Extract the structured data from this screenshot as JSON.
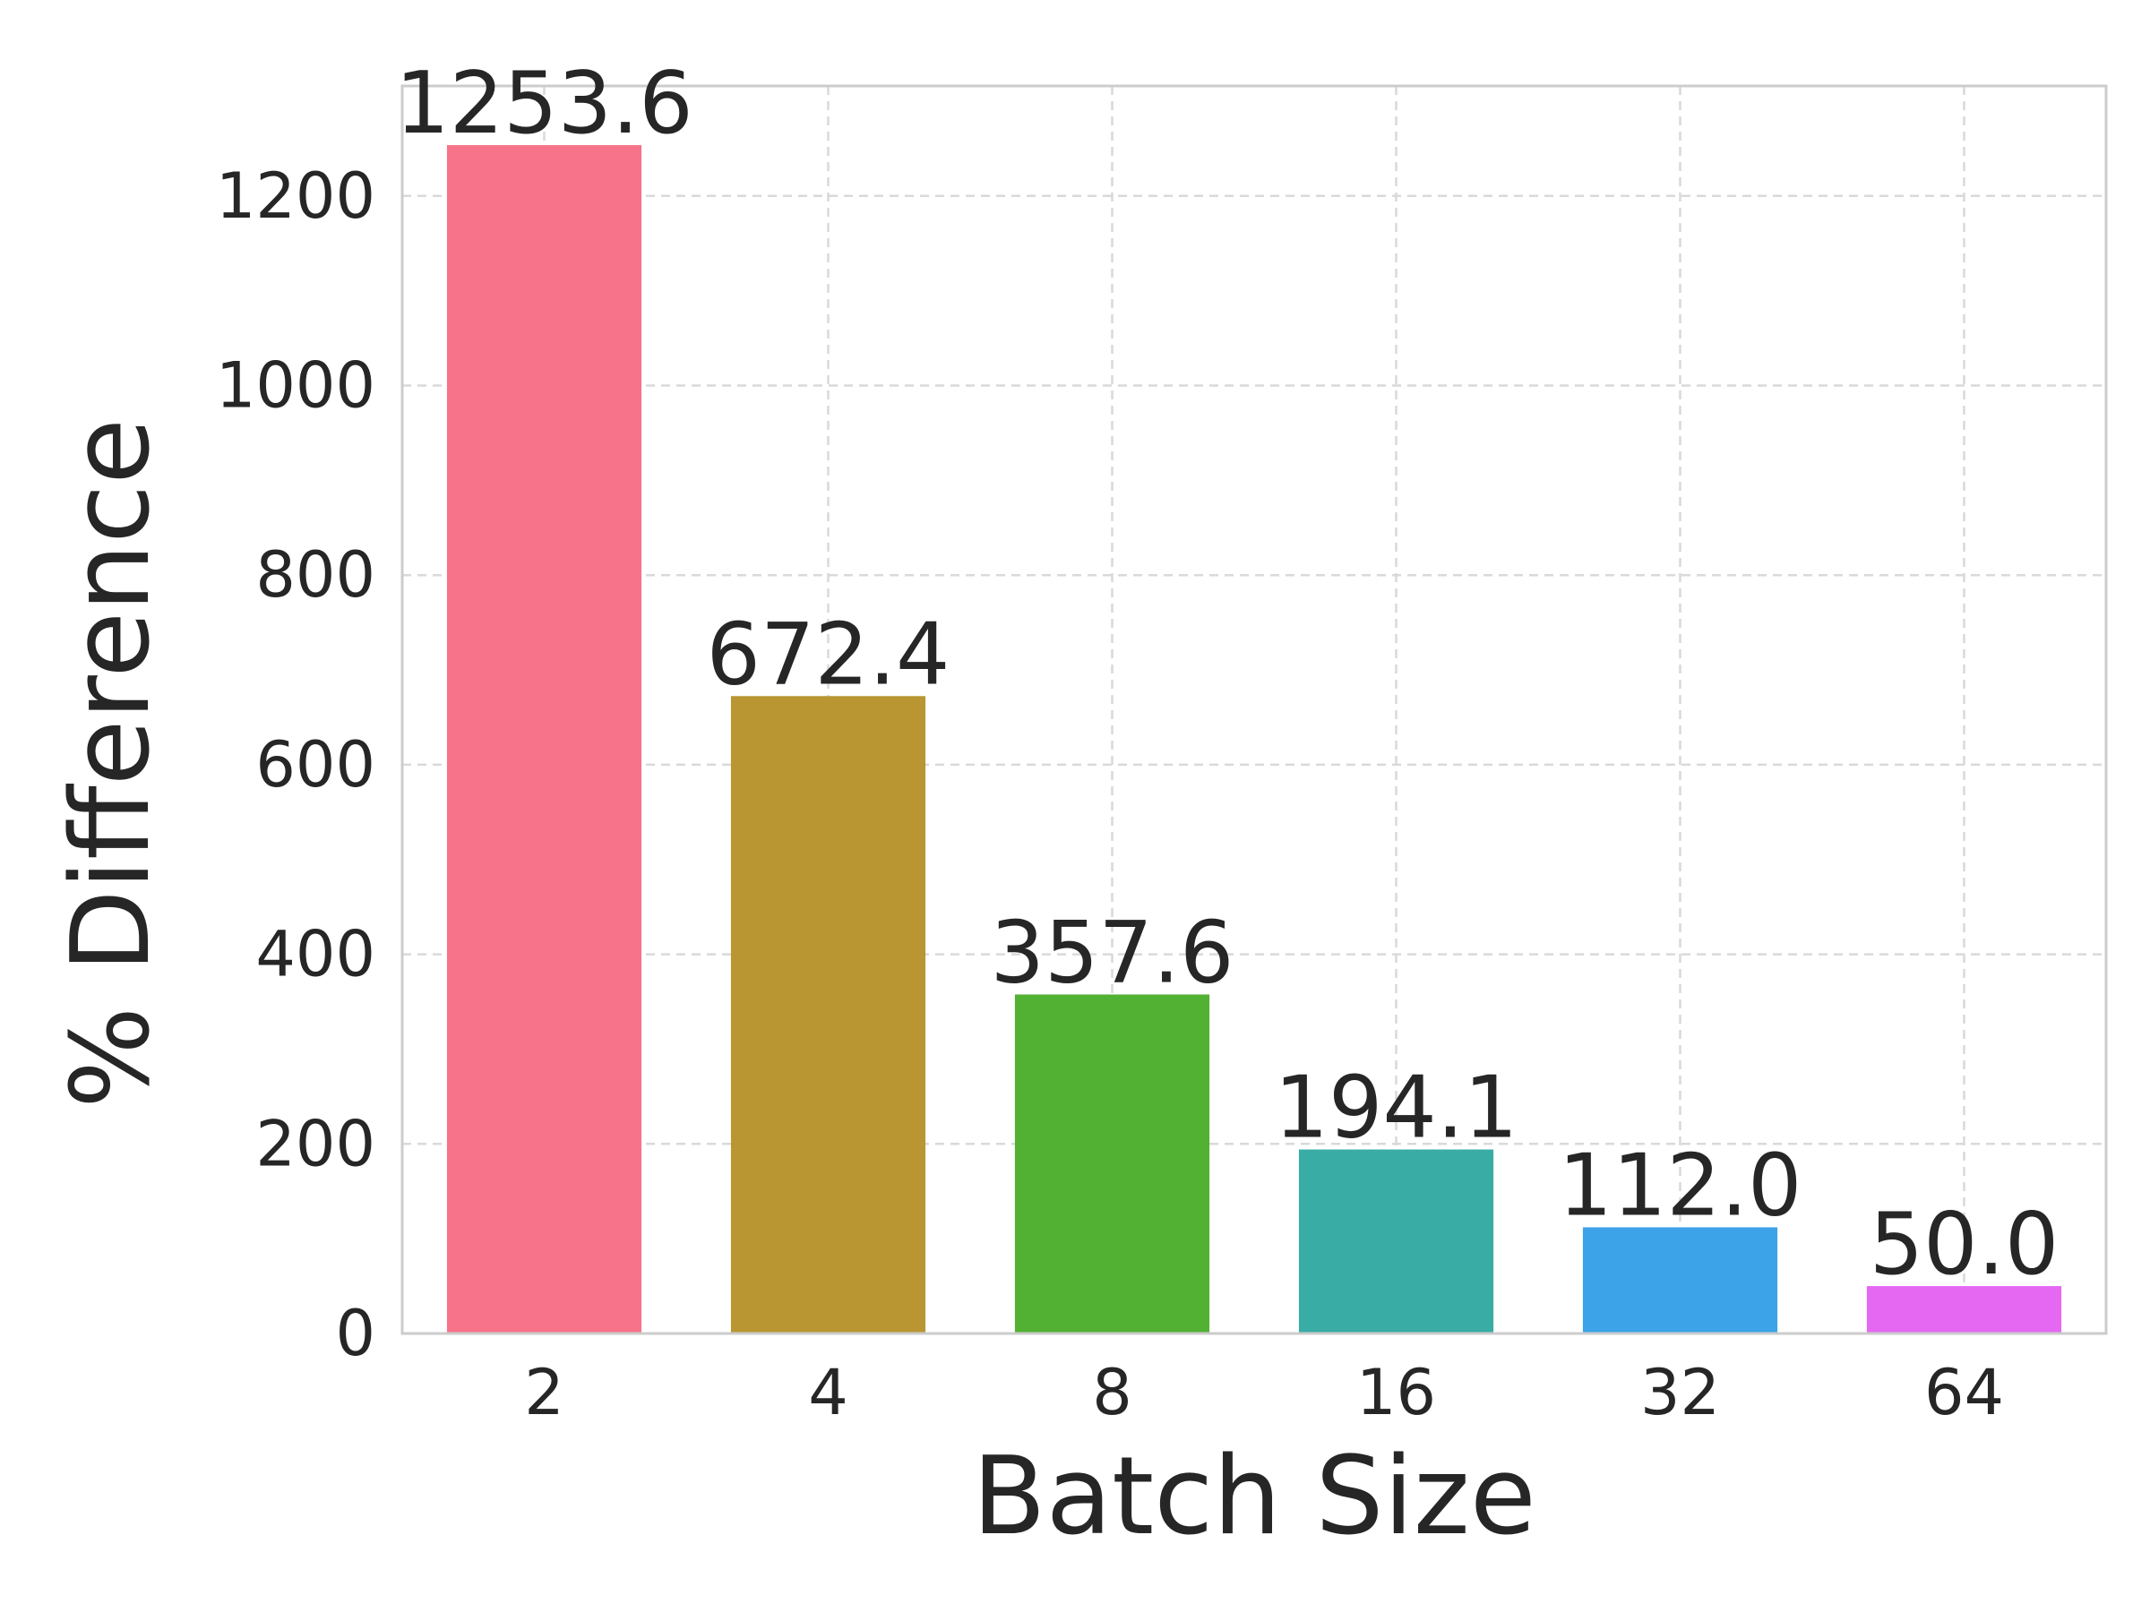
{
  "chart_data": {
    "type": "bar",
    "xlabel": "Batch Size",
    "ylabel": "% Difference",
    "categories": [
      "2",
      "4",
      "8",
      "16",
      "32",
      "64"
    ],
    "values": [
      1253.6,
      672.4,
      357.6,
      194.1,
      112.0,
      50.0
    ],
    "value_labels": [
      "1253.6",
      "672.4",
      "357.6",
      "194.1",
      "112.0",
      "50.0"
    ],
    "colors": [
      "#f7738a",
      "#b99632",
      "#52b032",
      "#39ada5",
      "#3ca3e8",
      "#e568f2"
    ],
    "ylim": [
      0,
      1316
    ],
    "yticks": [
      0,
      200,
      400,
      600,
      800,
      1000,
      1200
    ],
    "grid": true,
    "legend": "none"
  }
}
